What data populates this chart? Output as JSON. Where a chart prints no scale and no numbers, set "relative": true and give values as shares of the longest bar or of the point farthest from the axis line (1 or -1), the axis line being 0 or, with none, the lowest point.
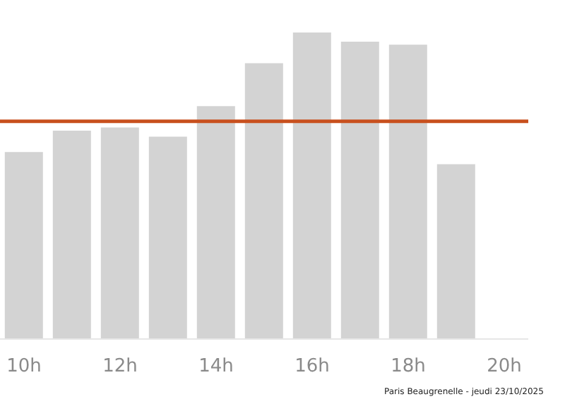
{
  "chart_data": {
    "type": "bar",
    "relative": true,
    "categories": [
      "10h",
      null,
      "12h",
      null,
      "14h",
      null,
      "16h",
      null,
      "18h",
      null,
      "20h"
    ],
    "values": [
      0.61,
      0.68,
      0.69,
      0.66,
      0.76,
      0.9,
      1,
      0.97,
      0.96,
      0.57,
      null
    ],
    "color": "#d3d3d3",
    "ref_lines": [
      {
        "axis": "y",
        "value": 0.71,
        "color": "#c8501e"
      }
    ],
    "annotations": [
      "Paris Beaugrenelle - jeudi 23/10/2025"
    ],
    "grid": false,
    "legend": false
  }
}
